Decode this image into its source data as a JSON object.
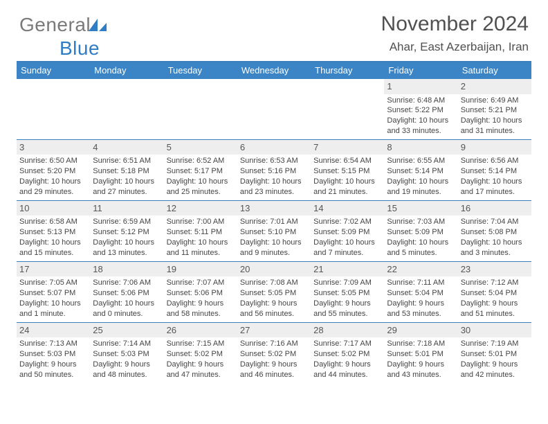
{
  "logo": {
    "text_a": "General",
    "text_b": "Blue",
    "shape_color": "#2f7dc4",
    "gray": "#7a7a7a"
  },
  "title": "November 2024",
  "location": "Ahar, East Azerbaijan, Iran",
  "weekdays": [
    "Sunday",
    "Monday",
    "Tuesday",
    "Wednesday",
    "Thursday",
    "Friday",
    "Saturday"
  ],
  "header_bg": "#3b84c6",
  "border_color": "#3b7fbf",
  "weeks": [
    [
      null,
      null,
      null,
      null,
      null,
      {
        "n": "1",
        "sr": "Sunrise: 6:48 AM",
        "ss": "Sunset: 5:22 PM",
        "dl1": "Daylight: 10 hours",
        "dl2": "and 33 minutes."
      },
      {
        "n": "2",
        "sr": "Sunrise: 6:49 AM",
        "ss": "Sunset: 5:21 PM",
        "dl1": "Daylight: 10 hours",
        "dl2": "and 31 minutes."
      }
    ],
    [
      {
        "n": "3",
        "sr": "Sunrise: 6:50 AM",
        "ss": "Sunset: 5:20 PM",
        "dl1": "Daylight: 10 hours",
        "dl2": "and 29 minutes."
      },
      {
        "n": "4",
        "sr": "Sunrise: 6:51 AM",
        "ss": "Sunset: 5:18 PM",
        "dl1": "Daylight: 10 hours",
        "dl2": "and 27 minutes."
      },
      {
        "n": "5",
        "sr": "Sunrise: 6:52 AM",
        "ss": "Sunset: 5:17 PM",
        "dl1": "Daylight: 10 hours",
        "dl2": "and 25 minutes."
      },
      {
        "n": "6",
        "sr": "Sunrise: 6:53 AM",
        "ss": "Sunset: 5:16 PM",
        "dl1": "Daylight: 10 hours",
        "dl2": "and 23 minutes."
      },
      {
        "n": "7",
        "sr": "Sunrise: 6:54 AM",
        "ss": "Sunset: 5:15 PM",
        "dl1": "Daylight: 10 hours",
        "dl2": "and 21 minutes."
      },
      {
        "n": "8",
        "sr": "Sunrise: 6:55 AM",
        "ss": "Sunset: 5:14 PM",
        "dl1": "Daylight: 10 hours",
        "dl2": "and 19 minutes."
      },
      {
        "n": "9",
        "sr": "Sunrise: 6:56 AM",
        "ss": "Sunset: 5:14 PM",
        "dl1": "Daylight: 10 hours",
        "dl2": "and 17 minutes."
      }
    ],
    [
      {
        "n": "10",
        "sr": "Sunrise: 6:58 AM",
        "ss": "Sunset: 5:13 PM",
        "dl1": "Daylight: 10 hours",
        "dl2": "and 15 minutes."
      },
      {
        "n": "11",
        "sr": "Sunrise: 6:59 AM",
        "ss": "Sunset: 5:12 PM",
        "dl1": "Daylight: 10 hours",
        "dl2": "and 13 minutes."
      },
      {
        "n": "12",
        "sr": "Sunrise: 7:00 AM",
        "ss": "Sunset: 5:11 PM",
        "dl1": "Daylight: 10 hours",
        "dl2": "and 11 minutes."
      },
      {
        "n": "13",
        "sr": "Sunrise: 7:01 AM",
        "ss": "Sunset: 5:10 PM",
        "dl1": "Daylight: 10 hours",
        "dl2": "and 9 minutes."
      },
      {
        "n": "14",
        "sr": "Sunrise: 7:02 AM",
        "ss": "Sunset: 5:09 PM",
        "dl1": "Daylight: 10 hours",
        "dl2": "and 7 minutes."
      },
      {
        "n": "15",
        "sr": "Sunrise: 7:03 AM",
        "ss": "Sunset: 5:09 PM",
        "dl1": "Daylight: 10 hours",
        "dl2": "and 5 minutes."
      },
      {
        "n": "16",
        "sr": "Sunrise: 7:04 AM",
        "ss": "Sunset: 5:08 PM",
        "dl1": "Daylight: 10 hours",
        "dl2": "and 3 minutes."
      }
    ],
    [
      {
        "n": "17",
        "sr": "Sunrise: 7:05 AM",
        "ss": "Sunset: 5:07 PM",
        "dl1": "Daylight: 10 hours",
        "dl2": "and 1 minute."
      },
      {
        "n": "18",
        "sr": "Sunrise: 7:06 AM",
        "ss": "Sunset: 5:06 PM",
        "dl1": "Daylight: 10 hours",
        "dl2": "and 0 minutes."
      },
      {
        "n": "19",
        "sr": "Sunrise: 7:07 AM",
        "ss": "Sunset: 5:06 PM",
        "dl1": "Daylight: 9 hours",
        "dl2": "and 58 minutes."
      },
      {
        "n": "20",
        "sr": "Sunrise: 7:08 AM",
        "ss": "Sunset: 5:05 PM",
        "dl1": "Daylight: 9 hours",
        "dl2": "and 56 minutes."
      },
      {
        "n": "21",
        "sr": "Sunrise: 7:09 AM",
        "ss": "Sunset: 5:05 PM",
        "dl1": "Daylight: 9 hours",
        "dl2": "and 55 minutes."
      },
      {
        "n": "22",
        "sr": "Sunrise: 7:11 AM",
        "ss": "Sunset: 5:04 PM",
        "dl1": "Daylight: 9 hours",
        "dl2": "and 53 minutes."
      },
      {
        "n": "23",
        "sr": "Sunrise: 7:12 AM",
        "ss": "Sunset: 5:04 PM",
        "dl1": "Daylight: 9 hours",
        "dl2": "and 51 minutes."
      }
    ],
    [
      {
        "n": "24",
        "sr": "Sunrise: 7:13 AM",
        "ss": "Sunset: 5:03 PM",
        "dl1": "Daylight: 9 hours",
        "dl2": "and 50 minutes."
      },
      {
        "n": "25",
        "sr": "Sunrise: 7:14 AM",
        "ss": "Sunset: 5:03 PM",
        "dl1": "Daylight: 9 hours",
        "dl2": "and 48 minutes."
      },
      {
        "n": "26",
        "sr": "Sunrise: 7:15 AM",
        "ss": "Sunset: 5:02 PM",
        "dl1": "Daylight: 9 hours",
        "dl2": "and 47 minutes."
      },
      {
        "n": "27",
        "sr": "Sunrise: 7:16 AM",
        "ss": "Sunset: 5:02 PM",
        "dl1": "Daylight: 9 hours",
        "dl2": "and 46 minutes."
      },
      {
        "n": "28",
        "sr": "Sunrise: 7:17 AM",
        "ss": "Sunset: 5:02 PM",
        "dl1": "Daylight: 9 hours",
        "dl2": "and 44 minutes."
      },
      {
        "n": "29",
        "sr": "Sunrise: 7:18 AM",
        "ss": "Sunset: 5:01 PM",
        "dl1": "Daylight: 9 hours",
        "dl2": "and 43 minutes."
      },
      {
        "n": "30",
        "sr": "Sunrise: 7:19 AM",
        "ss": "Sunset: 5:01 PM",
        "dl1": "Daylight: 9 hours",
        "dl2": "and 42 minutes."
      }
    ]
  ]
}
